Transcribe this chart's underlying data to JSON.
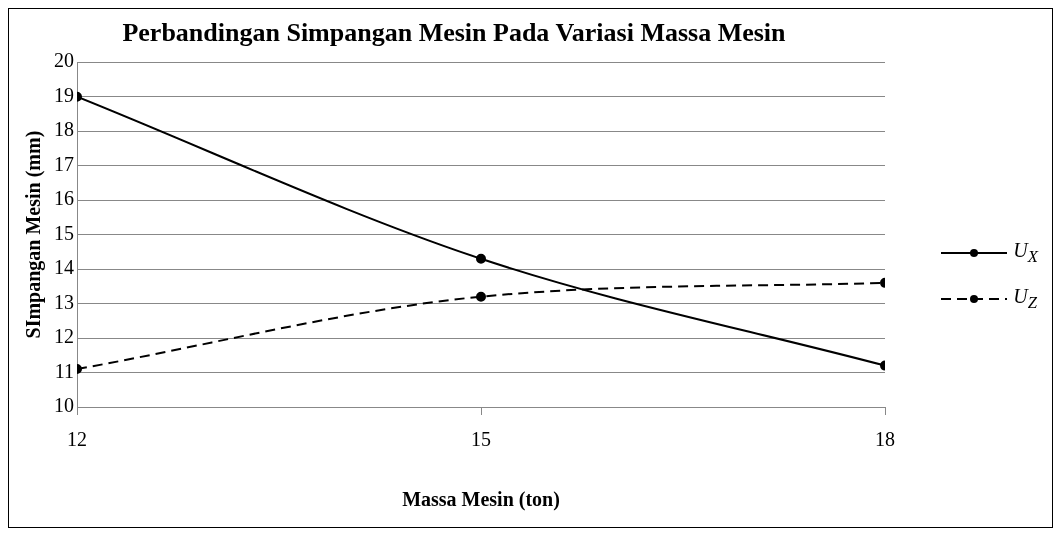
{
  "chart_data": {
    "type": "line",
    "title": "Perbandingan Simpangan Mesin Pada Variasi Massa Mesin",
    "xlabel": "Massa Mesin (ton)",
    "ylabel": "SImpangan Mesin (mm)",
    "x": [
      12,
      15,
      18
    ],
    "xlim": [
      12,
      18
    ],
    "xticks": [
      12,
      15,
      18
    ],
    "ylim": [
      10,
      20
    ],
    "yticks": [
      10,
      11,
      12,
      13,
      14,
      15,
      16,
      17,
      18,
      19,
      20
    ],
    "grid": "y",
    "legend": "right",
    "marker": "circle",
    "series": [
      {
        "name": "U$_{X}$",
        "color": "#000000",
        "line_style": "solid",
        "values": [
          19,
          14.3,
          11.2
        ]
      },
      {
        "name": "U$_{Z}$",
        "color": "#000000",
        "line_style": "dashed",
        "values": [
          11.1,
          13.2,
          13.6
        ]
      }
    ]
  }
}
